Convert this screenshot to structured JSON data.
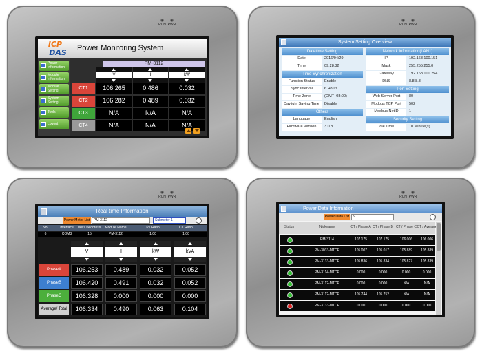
{
  "device_leds": {
    "run": "RUN",
    "pwr": "PWR"
  },
  "screen1": {
    "logo_top": "ICP",
    "logo_bottom": "DAS",
    "title": "Power Monitoring System",
    "menu": [
      "Power Information",
      "Module Information",
      "Module Setting",
      "System Setting",
      "Tools",
      "Logout"
    ],
    "module": "PM-3112",
    "columns": [
      "V",
      "I",
      "kW"
    ],
    "rows": [
      {
        "label": "CT1",
        "color": "#d9453a",
        "values": [
          "106.265",
          "0.486",
          "0.032"
        ]
      },
      {
        "label": "CT2",
        "color": "#d9453a",
        "values": [
          "106.282",
          "0.489",
          "0.032"
        ]
      },
      {
        "label": "CT3",
        "color": "#3fa53a",
        "values": [
          "N/A",
          "N/A",
          "N/A"
        ]
      },
      {
        "label": "CT4",
        "color": "#9a9a9a",
        "values": [
          "N/A",
          "N/A",
          "N/A"
        ]
      }
    ]
  },
  "screen2": {
    "title": "System Setting Overview",
    "left": [
      {
        "header": "Datetime Setting",
        "rows": [
          [
            "Date",
            "2016/04/29"
          ],
          [
            "Time",
            "09:28:32"
          ]
        ]
      },
      {
        "header": "Time Synchronization",
        "rows": [
          [
            "Function Status",
            "Enable"
          ],
          [
            "Sync Interval",
            "6 Hours"
          ],
          [
            "Time Zone",
            "(GMT+08:00)"
          ],
          [
            "Daylight Saving Time",
            "Disable"
          ]
        ]
      },
      {
        "header": "Others",
        "rows": [
          [
            "Language",
            "English"
          ],
          [
            "Firmware Version",
            "3.0.8"
          ]
        ]
      }
    ],
    "right": [
      {
        "header": "Network Information(LAN1)",
        "rows": [
          [
            "IP",
            "192.168.100.151"
          ],
          [
            "Mask",
            "255.255.255.0"
          ],
          [
            "Gateway",
            "192.168.100.254"
          ],
          [
            "DNS",
            "8.8.8.8"
          ]
        ]
      },
      {
        "header": "Port Setting",
        "rows": [
          [
            "Web Server Port",
            "80"
          ],
          [
            "Modbus TCP Port",
            "502"
          ],
          [
            "Modbus NetID",
            "1"
          ]
        ]
      },
      {
        "header": "Security Setting",
        "rows": [
          [
            "Idle Time",
            "10 Minute(s)"
          ]
        ]
      }
    ]
  },
  "screen3": {
    "title": "Real time Information",
    "meter_list_label": "Power Meter List",
    "meter_select": "PM-3112",
    "submeter_select": "Submeter 1",
    "info_headers": [
      "No.",
      "Interface",
      "NetID/Address",
      "Module Name",
      "PT Ratio",
      "CT Ratio"
    ],
    "info_values": [
      "6",
      "COM3",
      "15",
      "PM-3112",
      "1.00",
      "1.00"
    ],
    "columns": [
      "V",
      "I",
      "kW",
      "kVA"
    ],
    "rows": [
      {
        "label": "PhaseA",
        "color": "#d9453a",
        "values": [
          "106.253",
          "0.489",
          "0.032",
          "0.052"
        ]
      },
      {
        "label": "PhaseB",
        "color": "#3d7fd0",
        "values": [
          "106.420",
          "0.491",
          "0.032",
          "0.052"
        ]
      },
      {
        "label": "PhaseC",
        "color": "#4caf3c",
        "values": [
          "106.328",
          "0.000",
          "0.000",
          "0.000"
        ]
      },
      {
        "label": "Average/ Total",
        "color": "#d0d0d0",
        "values": [
          "106.334",
          "0.490",
          "0.063",
          "0.104"
        ]
      }
    ]
  },
  "screen4": {
    "title": "Power Data Information",
    "list_label": "Power Data List",
    "list_select": "V",
    "headers": [
      "Status",
      "Nickname",
      "CT / Phase A",
      "CT / Phase B",
      "CT / Phase C",
      "CT / Average"
    ],
    "rows": [
      {
        "status_color": "#2fc02f",
        "nickname": "PM-3114",
        "values": [
          "107.175",
          "107.175",
          "106.006",
          "106.006"
        ]
      },
      {
        "status_color": "#2fc02f",
        "nickname": "PM-3033-MTCP",
        "values": [
          "105.007",
          "105.017",
          "105.889",
          "105.889"
        ]
      },
      {
        "status_color": "#2fc02f",
        "nickname": "PM-3133-MTCP",
        "values": [
          "105.836",
          "105.834",
          "105.827",
          "105.839"
        ]
      },
      {
        "status_color": "#2fc02f",
        "nickname": "PM-3114-MTCP",
        "values": [
          "0.000",
          "0.000",
          "0.000",
          "0.000"
        ]
      },
      {
        "status_color": "#2fc02f",
        "nickname": "PM-3112-MTCP",
        "values": [
          "0.000",
          "0.000",
          "N/A",
          "N/A"
        ]
      },
      {
        "status_color": "#2fc02f",
        "nickname": "PM-3112-MTCP",
        "values": [
          "105.744",
          "105.752",
          "N/A",
          "N/A"
        ]
      },
      {
        "status_color": "#e02020",
        "nickname": "PM-3133-MTCP",
        "values": [
          "0.000",
          "0.000",
          "0.000",
          "0.000"
        ]
      }
    ]
  }
}
